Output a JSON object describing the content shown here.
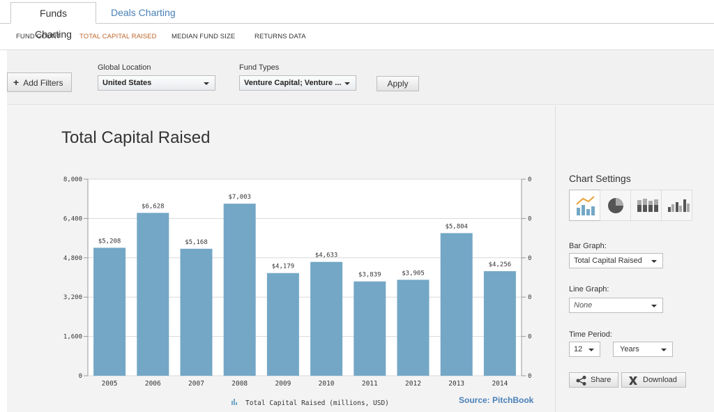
{
  "tabs": [
    {
      "label": "Funds Charting",
      "active": true
    },
    {
      "label": "Deals Charting",
      "active": false
    }
  ],
  "subnav": [
    {
      "label": "FUND COUNT",
      "active": false
    },
    {
      "label": "TOTAL CAPITAL RAISED",
      "active": true
    },
    {
      "label": "MEDIAN FUND SIZE",
      "active": false
    },
    {
      "label": "RETURNS DATA",
      "active": false
    }
  ],
  "filters": {
    "add_label": "Add Filters",
    "location_label": "Global Location",
    "location_value": "United States",
    "fund_types_label": "Fund Types",
    "fund_types_value": "Venture Capital; Venture ...",
    "apply_label": "Apply"
  },
  "chart_data": {
    "type": "bar",
    "title": "Total Capital Raised",
    "categories": [
      "2005",
      "2006",
      "2007",
      "2008",
      "2009",
      "2010",
      "2011",
      "2012",
      "2013",
      "2014"
    ],
    "values": [
      5208,
      6628,
      5168,
      7003,
      4179,
      4633,
      3839,
      3905,
      5804,
      4256
    ],
    "value_labels": [
      "$5,208",
      "$6,628",
      "$5,168",
      "$7,003",
      "$4,179",
      "$4,633",
      "$3,839",
      "$3,905",
      "$5,804",
      "$4,256"
    ],
    "ylim": [
      0,
      8000
    ],
    "yticks": [
      "8,000",
      "6,400",
      "4,800",
      "3,200",
      "1,600",
      "0"
    ],
    "y2ticks": [
      "0",
      "0",
      "0",
      "0",
      "0",
      "0"
    ],
    "legend": "Total Capital Raised (millions, USD)",
    "source": "Source: PitchBook",
    "bar_color": "#74a7c6",
    "grid": true
  },
  "settings": {
    "title": "Chart Settings",
    "bar_graph_label": "Bar Graph:",
    "bar_graph_value": "Total Capital Raised",
    "line_graph_label": "Line Graph:",
    "line_graph_value": "None",
    "time_period_label": "Time Period:",
    "time_period_count": "12",
    "time_period_unit": "Years",
    "share_label": "Share",
    "download_label": "Download"
  }
}
